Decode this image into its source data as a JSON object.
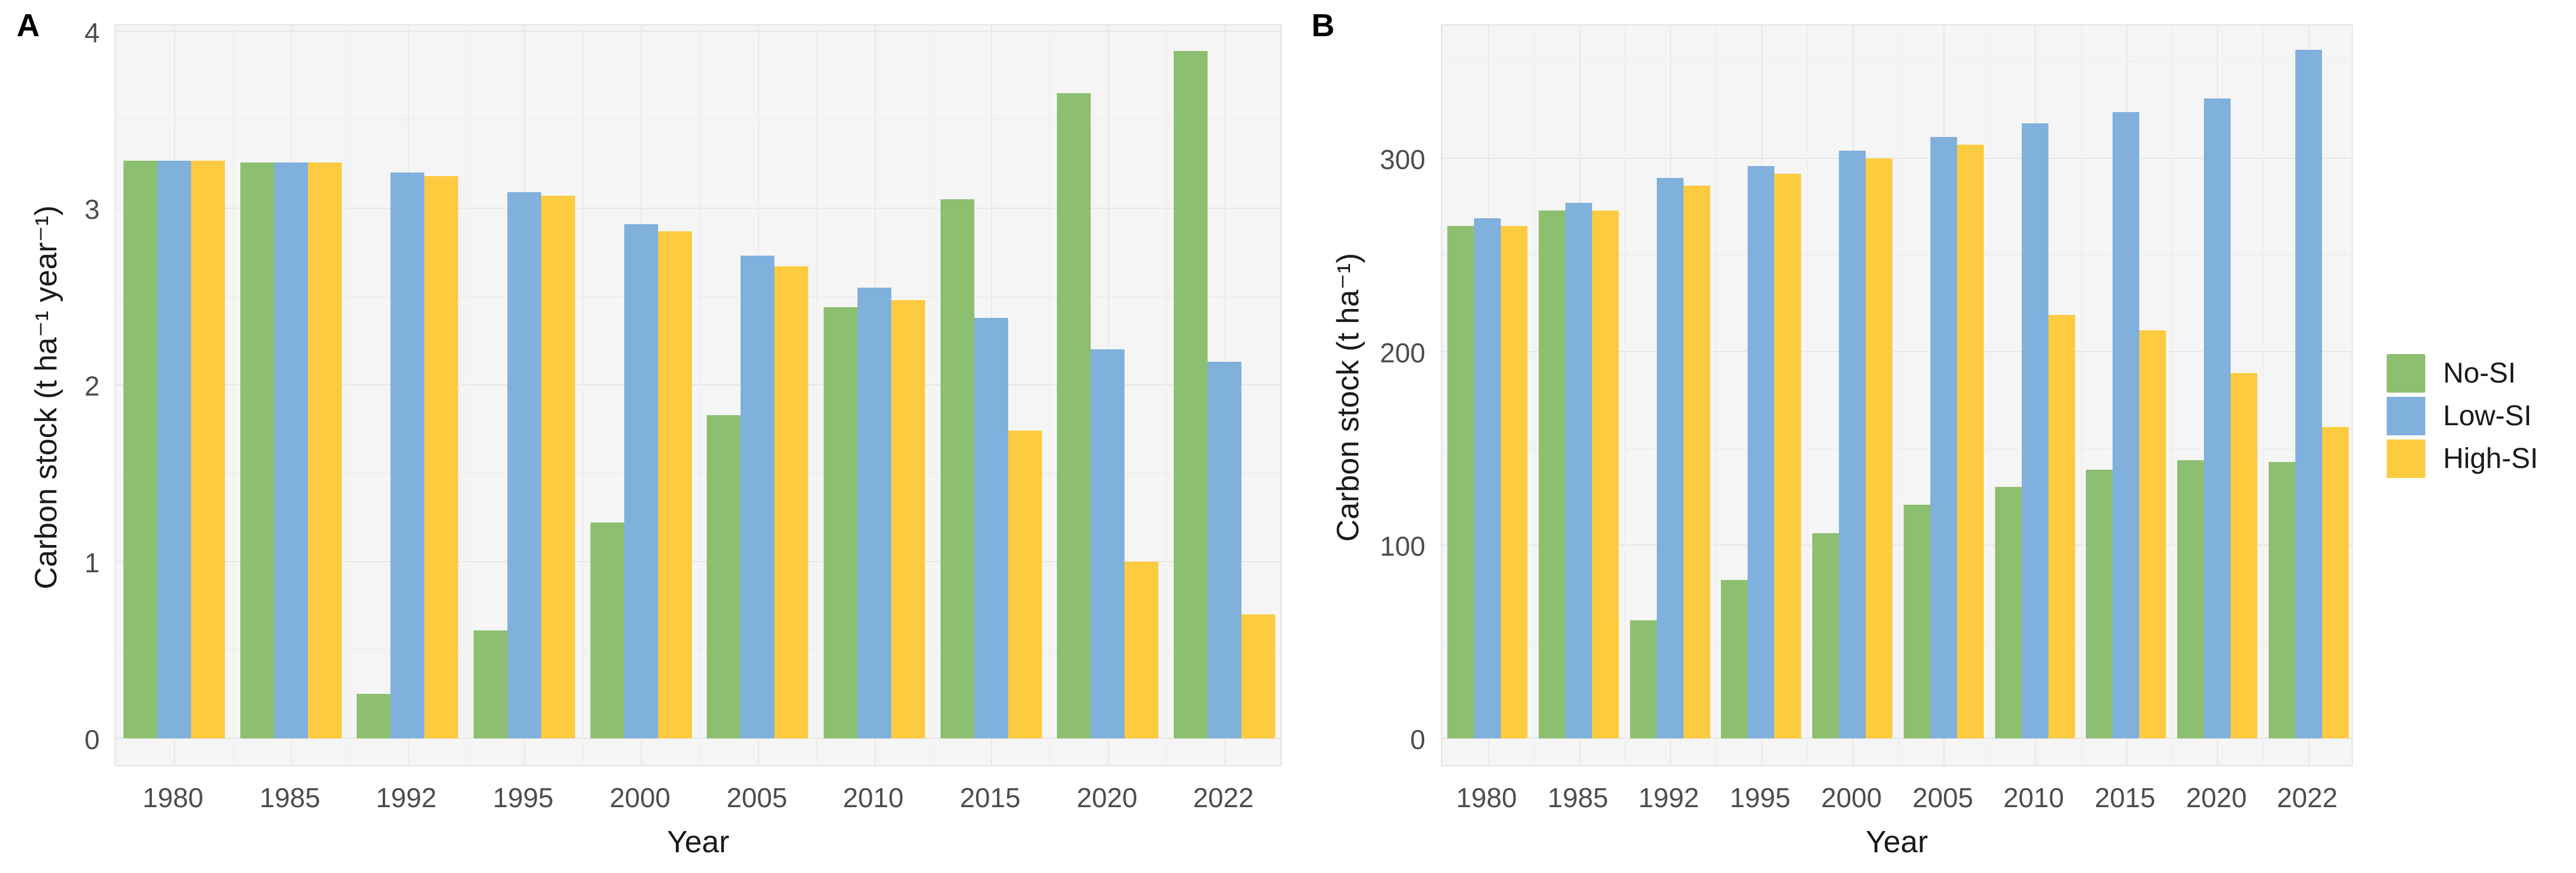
{
  "figure": {
    "panel_a_label": "A",
    "panel_b_label": "B"
  },
  "colors": {
    "no_si": "#8dbf70",
    "low_si": "#80b0dc",
    "high_si": "#fdcb40",
    "panel_background": "#f5f5f5",
    "grid_major": "#e6e6e6",
    "grid_minor": "#eeeeee",
    "tick_text": "#4d4d4d"
  },
  "legend": {
    "position": "right",
    "entries": [
      {
        "label": "No-SI",
        "color": "#8dbf70"
      },
      {
        "label": "Low-SI",
        "color": "#80b0dc"
      },
      {
        "label": "High-SI",
        "color": "#fdcb40"
      }
    ]
  },
  "chart_data": [
    {
      "type": "bar",
      "panel_label": "A",
      "title": "",
      "xlabel": "Year",
      "ylabel": "Carbon stock (t ha⁻¹ year⁻¹)",
      "categories": [
        "1980",
        "1985",
        "1992",
        "1995",
        "2000",
        "2005",
        "2010",
        "2015",
        "2020",
        "2022"
      ],
      "series": [
        {
          "name": "No-SI",
          "color": "#8dbf70",
          "values": [
            3.27,
            3.26,
            0.25,
            0.61,
            1.22,
            1.83,
            2.44,
            3.05,
            3.65,
            3.89
          ]
        },
        {
          "name": "Low-SI",
          "color": "#80b0dc",
          "values": [
            3.27,
            3.26,
            3.2,
            3.09,
            2.91,
            2.73,
            2.55,
            2.38,
            2.2,
            2.13
          ]
        },
        {
          "name": "High-SI",
          "color": "#fdcb40",
          "values": [
            3.27,
            3.26,
            3.18,
            3.07,
            2.87,
            2.67,
            2.48,
            1.74,
            1.0,
            0.7
          ]
        }
      ],
      "ylim": [
        0,
        4
      ],
      "yticks": [
        0,
        1,
        2,
        3,
        4
      ],
      "yminor": [
        0.5,
        1.5,
        2.5,
        3.5
      ],
      "grid": true,
      "legend_position": "right"
    },
    {
      "type": "bar",
      "panel_label": "B",
      "title": "",
      "xlabel": "Year",
      "ylabel": "Carbon stock (t ha⁻¹)",
      "categories": [
        "1980",
        "1985",
        "1992",
        "1995",
        "2000",
        "2005",
        "2010",
        "2015",
        "2020",
        "2022"
      ],
      "series": [
        {
          "name": "No-SI",
          "color": "#8dbf70",
          "values": [
            265,
            273,
            61,
            82,
            106,
            121,
            130,
            139,
            144,
            143
          ]
        },
        {
          "name": "Low-SI",
          "color": "#80b0dc",
          "values": [
            269,
            277,
            290,
            296,
            304,
            311,
            318,
            324,
            331,
            356
          ]
        },
        {
          "name": "High-SI",
          "color": "#fdcb40",
          "values": [
            265,
            273,
            286,
            292,
            300,
            307,
            219,
            211,
            189,
            161
          ]
        }
      ],
      "ylim": [
        0,
        300
      ],
      "yticks": [
        0,
        100,
        200,
        300
      ],
      "yminor": [
        50,
        150,
        250,
        350
      ],
      "grid": true,
      "legend_position": "right"
    }
  ]
}
